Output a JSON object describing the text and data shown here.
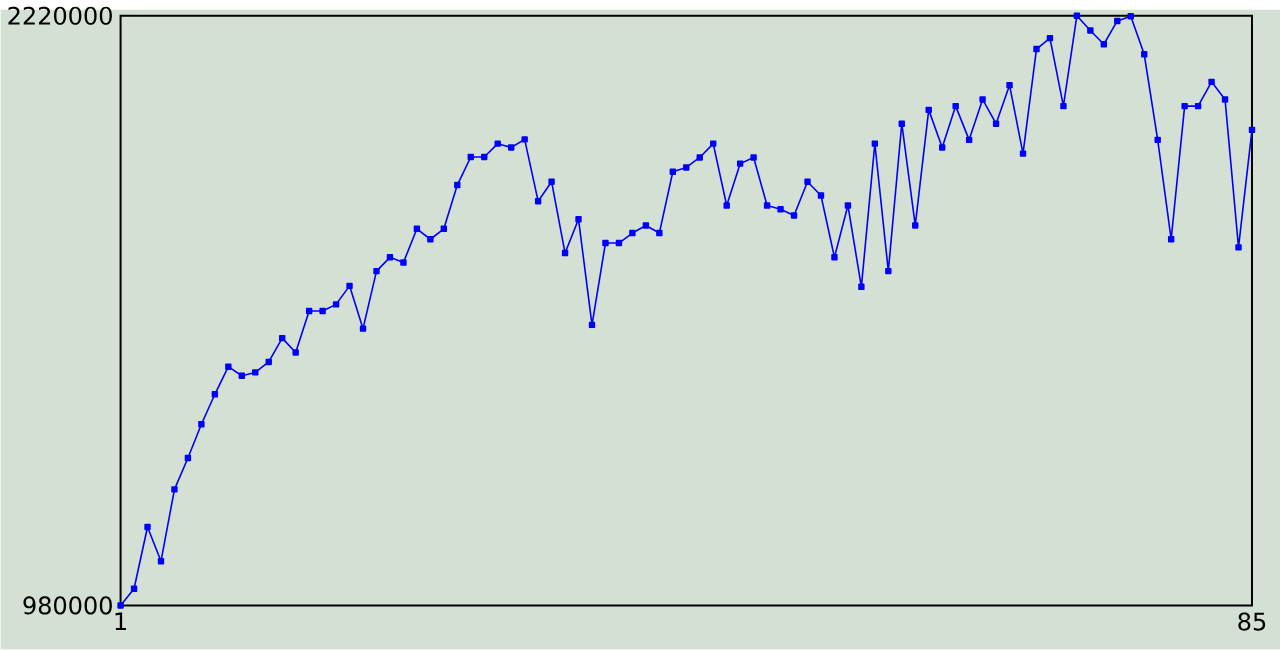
{
  "chart_data": {
    "type": "line",
    "x": [
      1,
      2,
      3,
      4,
      5,
      6,
      7,
      8,
      9,
      10,
      11,
      12,
      13,
      14,
      15,
      16,
      17,
      18,
      19,
      20,
      21,
      22,
      23,
      24,
      25,
      26,
      27,
      28,
      29,
      30,
      31,
      32,
      33,
      34,
      35,
      36,
      37,
      38,
      39,
      40,
      41,
      42,
      43,
      44,
      45,
      46,
      47,
      48,
      49,
      50,
      51,
      52,
      53,
      54,
      55,
      56,
      57,
      58,
      59,
      60,
      61,
      62,
      63,
      64,
      65,
      66,
      67,
      68,
      69,
      70,
      71,
      72,
      73,
      74,
      75,
      76,
      77,
      78,
      79,
      80,
      81,
      82,
      83,
      84,
      85
    ],
    "series": [
      {
        "color": "#0000ff",
        "values": [
          980000,
          1015000,
          1145000,
          1073000,
          1224000,
          1290000,
          1361000,
          1424000,
          1482000,
          1463000,
          1470000,
          1492000,
          1542000,
          1512000,
          1599000,
          1599000,
          1613000,
          1652000,
          1562000,
          1683000,
          1712000,
          1701000,
          1772000,
          1750000,
          1772000,
          1864000,
          1923000,
          1923000,
          1951000,
          1943000,
          1960000,
          1830000,
          1871000,
          1721000,
          1792000,
          1570000,
          1742000,
          1742000,
          1763000,
          1779000,
          1763000,
          1892000,
          1901000,
          1922000,
          1951000,
          1821000,
          1909000,
          1922000,
          1821000,
          1813000,
          1800000,
          1871000,
          1842000,
          1712000,
          1821000,
          1650000,
          1951000,
          1683000,
          1993000,
          1779000,
          2022000,
          1943000,
          2030000,
          1959000,
          2044000,
          1993000,
          2074000,
          1930000,
          2150000,
          2173000,
          2030000,
          2220000,
          2189000,
          2160000,
          2209000,
          2219000,
          2139000,
          1959000,
          1750000,
          2030000,
          2030000,
          2081000,
          2044000,
          1733000,
          1980000
        ]
      }
    ],
    "xlim": [
      1,
      85
    ],
    "ylim": [
      980000,
      2220000
    ],
    "xticks": [
      1,
      85
    ],
    "yticks": [
      980000,
      2220000
    ],
    "marker": "square",
    "line_style": "solid"
  }
}
